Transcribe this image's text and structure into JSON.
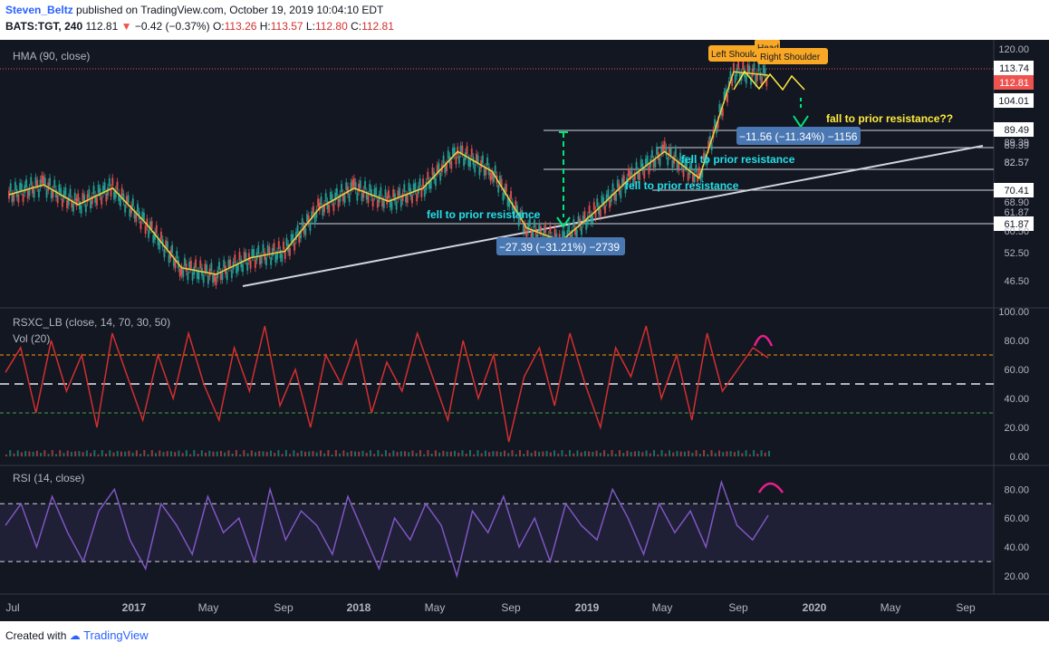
{
  "header": {
    "user": "Steven_Beltz",
    "published": "published on TradingView.com, October 19, 2019 10:04:10 EDT",
    "symbol": "BATS:TGT, 240",
    "last": "112.81",
    "change": "−0.42 (−0.37%)",
    "o_label": "O:",
    "o": "113.26",
    "h_label": "H:",
    "h": "113.57",
    "l_label": "L:",
    "l": "112.80",
    "c_label": "C:",
    "c": "112.81"
  },
  "footer": {
    "created": "Created with",
    "brand": "TradingView"
  },
  "colors": {
    "bg": "#131722",
    "hma": "#f4d03f",
    "rsxc": "#b71c1c",
    "rsi": "#7e57c2",
    "label_cyan": "#22e0e8",
    "label_yellow": "#ffeb3b",
    "arrow_green": "#00e676",
    "arc_pink": "#e91e8c"
  },
  "chart_data": [
    {
      "type": "line",
      "panel": "price",
      "indicator_label": "HMA (90, close)",
      "x_ticks": [
        "Jul",
        "2017",
        "May",
        "Sep",
        "2018",
        "May",
        "Sep",
        "2019",
        "May",
        "Sep",
        "2020",
        "May",
        "Sep"
      ],
      "y_ticks": [
        "120.00",
        "104.01",
        "89.39",
        "82.57",
        "70.41",
        "61.87",
        "52.50",
        "46.50"
      ],
      "ylim": [
        44,
        122
      ],
      "x": [
        "2016-06",
        "2016-08",
        "2016-10",
        "2016-12",
        "2017-02",
        "2017-04",
        "2017-06",
        "2017-08",
        "2017-10",
        "2017-12",
        "2018-02",
        "2018-04",
        "2018-06",
        "2018-08",
        "2018-10",
        "2018-11",
        "2018-12",
        "2019-02",
        "2019-04",
        "2019-06",
        "2019-08",
        "2019-09",
        "2019-10"
      ],
      "series": [
        {
          "values": [
            77,
            80,
            74,
            79,
            68,
            55,
            53,
            58,
            60,
            73,
            79,
            75,
            79,
            90,
            84,
            67,
            63,
            72,
            82,
            90,
            82,
            114,
            113
          ]
        }
      ],
      "price_labels": [
        {
          "value": "113.74"
        },
        {
          "value": "112.81"
        },
        {
          "value": "104.01"
        },
        {
          "value": "89.49"
        },
        {
          "value": "89.39"
        },
        {
          "value": "82.57"
        },
        {
          "value": "70.41"
        },
        {
          "value": "68.90"
        },
        {
          "value": "61.87"
        },
        {
          "value": "60.50"
        }
      ],
      "annotations": [
        {
          "text": "Left Shoulder"
        },
        {
          "text": "Head"
        },
        {
          "text": "Right Shoulder"
        },
        {
          "text": "fall to prior resistance??"
        },
        {
          "text": "−11.56 (−11.34%) −1156"
        },
        {
          "text": "fell to prior resistance"
        },
        {
          "text": "fell to prior resistance"
        },
        {
          "text": "fell to prior resistance"
        },
        {
          "text": "−27.39 (−31.21%) −2739"
        }
      ]
    },
    {
      "type": "line",
      "panel": "oscillator",
      "indicator_label": "RSXC_LB (close, 14, 70, 30, 50)",
      "volume_label": "Vol (20)",
      "y_ticks": [
        "100.00",
        "80.00",
        "60.00",
        "40.00",
        "20.00",
        "0.00"
      ],
      "ylim": [
        0,
        100
      ],
      "levels": [
        70,
        50,
        30
      ],
      "series": [
        {
          "name": "RSXC_LB",
          "values": [
            58,
            75,
            30,
            80,
            45,
            70,
            20,
            85,
            55,
            25,
            70,
            40,
            85,
            50,
            25,
            75,
            45,
            90,
            35,
            60,
            20,
            70,
            50,
            80,
            30,
            65,
            45,
            85,
            55,
            25,
            80,
            40,
            70,
            10,
            55,
            75,
            35,
            85,
            50,
            20,
            75,
            55,
            90,
            40,
            70,
            25,
            85,
            45,
            60,
            75,
            68
          ]
        }
      ]
    },
    {
      "type": "line",
      "panel": "rsi",
      "indicator_label": "RSI (14, close)",
      "y_ticks": [
        "80.00",
        "60.00",
        "40.00",
        "20.00"
      ],
      "ylim": [
        10,
        94
      ],
      "levels": [
        70,
        30
      ],
      "series": [
        {
          "name": "RSI",
          "values": [
            55,
            70,
            40,
            75,
            50,
            30,
            65,
            80,
            45,
            25,
            70,
            55,
            35,
            75,
            50,
            60,
            30,
            80,
            45,
            65,
            55,
            35,
            75,
            50,
            25,
            60,
            45,
            70,
            55,
            20,
            65,
            50,
            75,
            40,
            60,
            30,
            70,
            55,
            45,
            80,
            60,
            35,
            70,
            50,
            65,
            40,
            85,
            55,
            45,
            62
          ]
        }
      ]
    }
  ]
}
